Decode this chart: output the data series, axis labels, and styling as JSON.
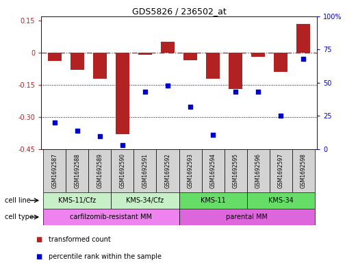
{
  "title": "GDS5826 / 236502_at",
  "samples": [
    "GSM1692587",
    "GSM1692588",
    "GSM1692589",
    "GSM1692590",
    "GSM1692591",
    "GSM1692592",
    "GSM1692593",
    "GSM1692594",
    "GSM1692595",
    "GSM1692596",
    "GSM1692597",
    "GSM1692598"
  ],
  "bar_values": [
    -0.04,
    -0.08,
    -0.12,
    -0.38,
    -0.01,
    0.05,
    -0.035,
    -0.12,
    -0.17,
    -0.02,
    -0.09,
    0.135
  ],
  "scatter_percentiles": [
    20,
    14,
    10,
    3,
    43,
    48,
    32,
    11,
    43,
    43,
    25,
    68
  ],
  "bar_color": "#b22222",
  "scatter_color": "#0000cc",
  "ylim_left": [
    -0.45,
    0.17
  ],
  "yticks_left": [
    0.15,
    0.0,
    -0.15,
    -0.3,
    -0.45
  ],
  "ytick_labels_left": [
    "0.15",
    "0",
    "-0.15",
    "-0.30",
    "-0.45"
  ],
  "ylim_right": [
    0,
    100
  ],
  "yticks_right": [
    0,
    25,
    50,
    75,
    100
  ],
  "ytick_labels_right": [
    "0",
    "25",
    "50",
    "75",
    "100%"
  ],
  "hline_y": 0.0,
  "dotted_lines": [
    -0.15,
    -0.3
  ],
  "cell_line_groups": [
    {
      "label": "KMS-11/Cfz",
      "start": 0,
      "end": 3,
      "color": "#c8f0c8"
    },
    {
      "label": "KMS-34/Cfz",
      "start": 3,
      "end": 6,
      "color": "#c8f0c8"
    },
    {
      "label": "KMS-11",
      "start": 6,
      "end": 9,
      "color": "#66dd66"
    },
    {
      "label": "KMS-34",
      "start": 9,
      "end": 12,
      "color": "#66dd66"
    }
  ],
  "cell_type_groups": [
    {
      "label": "carfilzomib-resistant MM",
      "start": 0,
      "end": 6,
      "color": "#ee82ee"
    },
    {
      "label": "parental MM",
      "start": 6,
      "end": 12,
      "color": "#dd66dd"
    }
  ],
  "cell_line_label": "cell line",
  "cell_type_label": "cell type",
  "legend_items": [
    {
      "color": "#b22222",
      "label": "transformed count"
    },
    {
      "color": "#0000cc",
      "label": "percentile rank within the sample"
    }
  ],
  "background_plot": "#ffffff",
  "background_sample": "#d3d3d3"
}
